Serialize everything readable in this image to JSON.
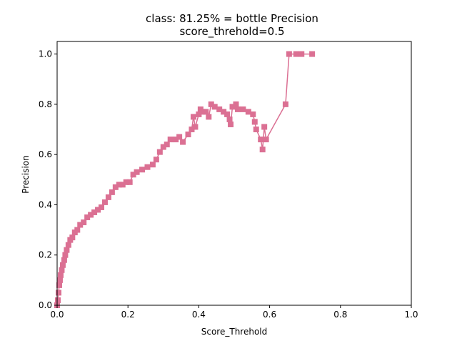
{
  "chart_data": {
    "type": "line",
    "title": "class: 81.25% = bottle Precision",
    "subtitle": "score_threhold=0.5",
    "xlabel": "Score_Threhold",
    "ylabel": "Precision",
    "xlim": [
      0.0,
      1.0
    ],
    "ylim": [
      0.0,
      1.05
    ],
    "x_ticks": [
      {
        "value": 0.0,
        "label": "0.0"
      },
      {
        "value": 0.2,
        "label": "0.2"
      },
      {
        "value": 0.4,
        "label": "0.4"
      },
      {
        "value": 0.6,
        "label": "0.6"
      },
      {
        "value": 0.8,
        "label": "0.8"
      },
      {
        "value": 1.0,
        "label": "1.0"
      }
    ],
    "y_ticks": [
      {
        "value": 0.0,
        "label": "0.0"
      },
      {
        "value": 0.2,
        "label": "0.2"
      },
      {
        "value": 0.4,
        "label": "0.4"
      },
      {
        "value": 0.6,
        "label": "0.6"
      },
      {
        "value": 0.8,
        "label": "0.8"
      },
      {
        "value": 1.0,
        "label": "1.0"
      }
    ],
    "grid": false,
    "legend": "none",
    "marker": "square",
    "series": [
      {
        "color": "#db7093",
        "points": [
          [
            0.0,
            0.0
          ],
          [
            0.002,
            0.02
          ],
          [
            0.004,
            0.05
          ],
          [
            0.006,
            0.08
          ],
          [
            0.008,
            0.1
          ],
          [
            0.01,
            0.12
          ],
          [
            0.013,
            0.14
          ],
          [
            0.016,
            0.16
          ],
          [
            0.02,
            0.18
          ],
          [
            0.023,
            0.2
          ],
          [
            0.027,
            0.22
          ],
          [
            0.032,
            0.24
          ],
          [
            0.037,
            0.26
          ],
          [
            0.043,
            0.27
          ],
          [
            0.05,
            0.29
          ],
          [
            0.057,
            0.3
          ],
          [
            0.065,
            0.32
          ],
          [
            0.075,
            0.33
          ],
          [
            0.085,
            0.35
          ],
          [
            0.095,
            0.36
          ],
          [
            0.105,
            0.37
          ],
          [
            0.115,
            0.38
          ],
          [
            0.125,
            0.39
          ],
          [
            0.135,
            0.41
          ],
          [
            0.145,
            0.43
          ],
          [
            0.155,
            0.45
          ],
          [
            0.165,
            0.47
          ],
          [
            0.175,
            0.48
          ],
          [
            0.185,
            0.48
          ],
          [
            0.195,
            0.49
          ],
          [
            0.205,
            0.49
          ],
          [
            0.215,
            0.52
          ],
          [
            0.225,
            0.53
          ],
          [
            0.24,
            0.54
          ],
          [
            0.255,
            0.55
          ],
          [
            0.27,
            0.56
          ],
          [
            0.28,
            0.58
          ],
          [
            0.29,
            0.61
          ],
          [
            0.3,
            0.63
          ],
          [
            0.31,
            0.64
          ],
          [
            0.32,
            0.66
          ],
          [
            0.335,
            0.66
          ],
          [
            0.345,
            0.67
          ],
          [
            0.355,
            0.65
          ],
          [
            0.37,
            0.68
          ],
          [
            0.38,
            0.7
          ],
          [
            0.385,
            0.75
          ],
          [
            0.39,
            0.71
          ],
          [
            0.4,
            0.76
          ],
          [
            0.405,
            0.78
          ],
          [
            0.41,
            0.77
          ],
          [
            0.42,
            0.77
          ],
          [
            0.428,
            0.75
          ],
          [
            0.435,
            0.8
          ],
          [
            0.445,
            0.79
          ],
          [
            0.458,
            0.78
          ],
          [
            0.47,
            0.77
          ],
          [
            0.48,
            0.76
          ],
          [
            0.487,
            0.74
          ],
          [
            0.49,
            0.72
          ],
          [
            0.495,
            0.79
          ],
          [
            0.505,
            0.8
          ],
          [
            0.51,
            0.78
          ],
          [
            0.525,
            0.78
          ],
          [
            0.54,
            0.77
          ],
          [
            0.553,
            0.76
          ],
          [
            0.558,
            0.73
          ],
          [
            0.562,
            0.7
          ],
          [
            0.575,
            0.66
          ],
          [
            0.58,
            0.62
          ],
          [
            0.585,
            0.71
          ],
          [
            0.59,
            0.66
          ],
          [
            0.645,
            0.8
          ],
          [
            0.655,
            1.0
          ],
          [
            0.675,
            1.0
          ],
          [
            0.69,
            1.0
          ],
          [
            0.72,
            1.0
          ]
        ]
      }
    ]
  }
}
